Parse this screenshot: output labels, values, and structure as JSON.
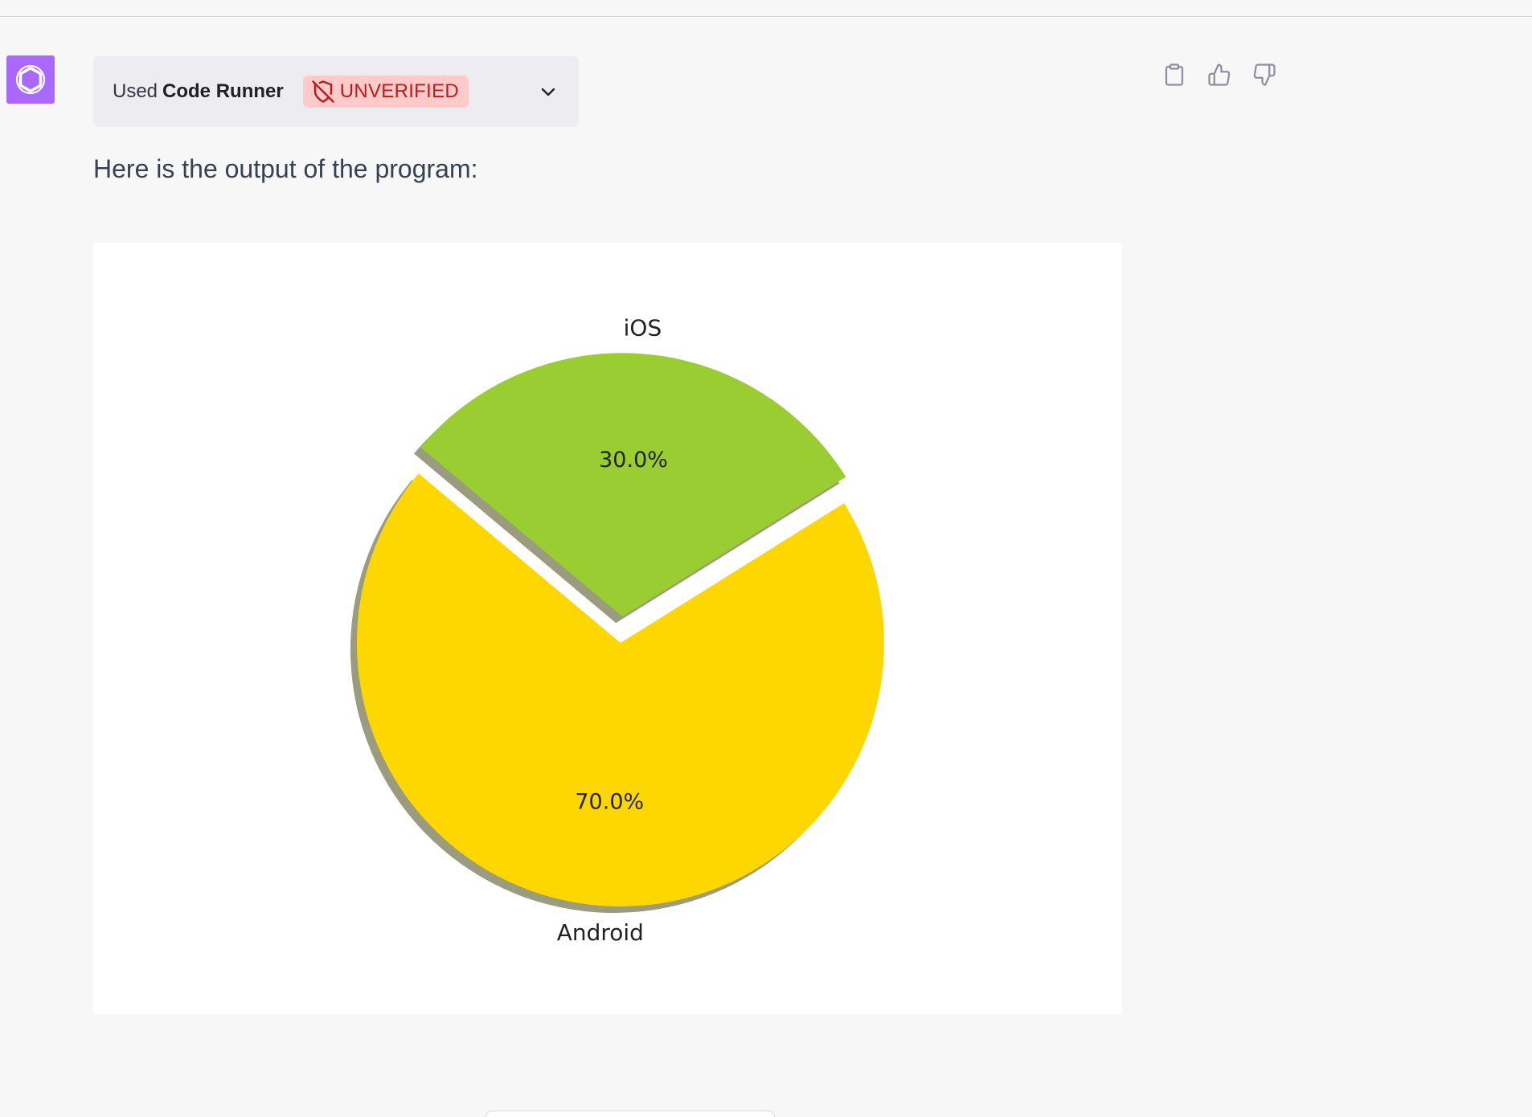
{
  "plugin": {
    "used_label": "Used",
    "name": "Code Runner",
    "badge": "UNVERIFIED",
    "badge_icon": "shield-off-icon",
    "expand_icon": "chevron-down-icon"
  },
  "message": {
    "text": "Here is the output of the program:"
  },
  "actions": {
    "copy_icon": "clipboard-icon",
    "like_icon": "thumbs-up-icon",
    "dislike_icon": "thumbs-down-icon"
  },
  "colors": {
    "avatar": "#ab68ff",
    "badge_bg": "#fecaca",
    "badge_text": "#b91c1c"
  },
  "chart_data": {
    "type": "pie",
    "slices": [
      {
        "label": "Android",
        "value": 70.0,
        "pct_label": "70.0%",
        "color": "#ffd700"
      },
      {
        "label": "iOS",
        "value": 30.0,
        "pct_label": "30.0%",
        "color": "#9acd32"
      }
    ],
    "explode": [
      0,
      0.1
    ],
    "shadow": true,
    "autopct": true
  }
}
